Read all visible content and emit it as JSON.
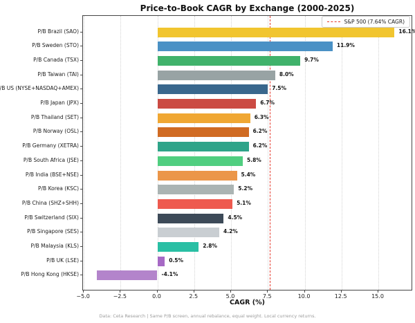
{
  "page": {
    "background": "#ffffff"
  },
  "chart_data": {
    "type": "bar",
    "orientation": "horizontal",
    "title": "Price-to-Book CAGR by Exchange (2000-2025)",
    "xlabel": "CAGR (%)",
    "grid": "vertical-dotted",
    "legend": {
      "position": "upper-right",
      "entries": [
        {
          "label": "S&P 500 (7.64% CAGR)",
          "color": "#e53528",
          "style": "dashed-line"
        }
      ]
    },
    "reference_line": {
      "value": 7.64,
      "color": "#e53528",
      "style": "dashed"
    },
    "categories": [
      "P/B Brazil (SAO)",
      "P/B Sweden (STO)",
      "P/B Canada (TSX)",
      "P/B Taiwan (TAI)",
      "P/B US (NYSE+NASDAQ+AMEX)",
      "P/B Japan (JPX)",
      "P/B Thailand (SET)",
      "P/B Norway (OSL)",
      "P/B Germany (XETRA)",
      "P/B South Africa (JSE)",
      "P/B India (BSE+NSE)",
      "P/B Korea (KSC)",
      "P/B China (SHZ+SHH)",
      "P/B Switzerland (SIX)",
      "P/B Singapore (SES)",
      "P/B Malaysia (KLS)",
      "P/B UK (LSE)",
      "P/B Hong Kong (HKSE)"
    ],
    "values": [
      16.1,
      11.9,
      9.7,
      8.0,
      7.5,
      6.7,
      6.3,
      6.2,
      6.2,
      5.8,
      5.4,
      5.2,
      5.1,
      4.5,
      4.2,
      2.8,
      0.5,
      -4.1
    ],
    "value_labels": [
      "16.1%",
      "11.9%",
      "9.7%",
      "8.0%",
      "7.5%",
      "6.7%",
      "6.3%",
      "6.2%",
      "6.2%",
      "5.8%",
      "5.4%",
      "5.2%",
      "5.1%",
      "4.5%",
      "4.2%",
      "2.8%",
      "0.5%",
      "-4.1%"
    ],
    "bar_colors": [
      "#f1c52f",
      "#4a91c5",
      "#40b26b",
      "#98a3a4",
      "#39678d",
      "#cb4b43",
      "#f0a733",
      "#d06b23",
      "#2ea489",
      "#50ce80",
      "#eb9649",
      "#abb4b3",
      "#ee5a4f",
      "#3d4a58",
      "#c9ced2",
      "#29bfa4",
      "#a669c5",
      "#b384cb"
    ],
    "x_ticks": [
      -5.0,
      -2.5,
      0.0,
      2.5,
      5.0,
      7.5,
      10.0,
      12.5,
      15.0
    ],
    "x_tick_labels": [
      "−5.0",
      "−2.5",
      "0.0",
      "2.5",
      "5.0",
      "7.5",
      "10.0",
      "12.5",
      "15.0"
    ],
    "xlim": [
      -5.05,
      17.35
    ],
    "footnote": "Data: Ceta Research | Same P/B screen, annual rebalance, equal weight. Local currency returns."
  }
}
